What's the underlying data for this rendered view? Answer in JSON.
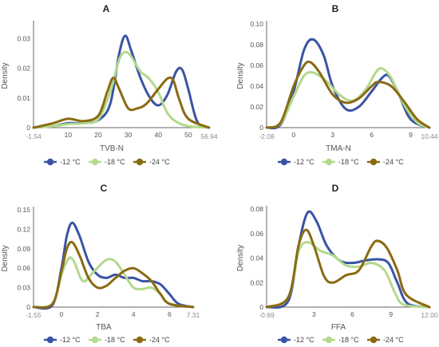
{
  "colors": {
    "minus12": "#3a53a4",
    "minus18": "#b3d98c",
    "minus24": "#8a6a12"
  },
  "chart_data": [
    {
      "type": "line",
      "panel": "A",
      "xlabel": "TVB-N",
      "ylabel": "Density",
      "xlim": [
        -1.54,
        56.94
      ],
      "xlim_labels": [
        "-1.54",
        "56.94"
      ],
      "ylim": [
        0,
        0.035
      ],
      "xticks": [
        10,
        20,
        30,
        40,
        50
      ],
      "xtick_labels": [
        "10",
        "20",
        "30",
        "40",
        "50"
      ],
      "yticks": [
        0,
        0.005,
        0.01,
        0.015,
        0.02,
        0.025,
        0.03
      ],
      "ytick_labels": [
        "0",
        "",
        "0.01",
        "",
        "0.02",
        "",
        "0.03"
      ],
      "series": [
        {
          "name": "-12 °C",
          "x": [
            -1.54,
            5,
            10,
            15,
            20,
            24,
            27,
            29,
            31,
            34,
            37,
            40,
            43,
            46,
            48,
            50,
            53,
            56.94
          ],
          "y": [
            0,
            0.0005,
            0.0015,
            0.0015,
            0.0025,
            0.008,
            0.025,
            0.031,
            0.026,
            0.017,
            0.0105,
            0.0075,
            0.011,
            0.019,
            0.0195,
            0.013,
            0.002,
            0
          ]
        },
        {
          "name": "-18 °C",
          "x": [
            -1.54,
            5,
            10,
            15,
            20,
            24,
            27,
            29,
            31,
            34,
            37,
            40,
            43,
            46,
            50,
            56.94
          ],
          "y": [
            0,
            0.0005,
            0.0012,
            0.0015,
            0.0028,
            0.012,
            0.023,
            0.0255,
            0.024,
            0.019,
            0.0165,
            0.012,
            0.005,
            0.002,
            0.0005,
            0
          ]
        },
        {
          "name": "-24 °C",
          "x": [
            -1.54,
            5,
            10,
            15,
            20,
            23,
            25,
            27,
            30,
            33,
            36,
            40,
            43,
            45,
            47,
            50,
            56.94
          ],
          "y": [
            0,
            0.0015,
            0.003,
            0.0022,
            0.004,
            0.012,
            0.0168,
            0.013,
            0.0065,
            0.0065,
            0.008,
            0.013,
            0.0165,
            0.016,
            0.0095,
            0.003,
            0
          ]
        }
      ]
    },
    {
      "type": "line",
      "panel": "B",
      "xlabel": "TMA-N",
      "ylabel": "Density",
      "xlim": [
        -2.08,
        10.44
      ],
      "xlim_labels": [
        "-2.08",
        "10.44"
      ],
      "ylim": [
        0,
        0.1
      ],
      "xticks": [
        0,
        3,
        6,
        9
      ],
      "xtick_labels": [
        "0",
        "3",
        "6",
        "9"
      ],
      "yticks": [
        0,
        0.02,
        0.04,
        0.06,
        0.08,
        0.1
      ],
      "ytick_labels": [
        "0",
        "0.02",
        "0.04",
        "0.06",
        "0.08",
        "0.10"
      ],
      "series": [
        {
          "name": "-12 °C",
          "x": [
            -2.08,
            -1,
            0,
            0.8,
            1.5,
            2.3,
            3,
            4,
            5,
            6,
            6.8,
            7.3,
            8,
            9,
            10.44
          ],
          "y": [
            0,
            0.003,
            0.035,
            0.075,
            0.085,
            0.07,
            0.04,
            0.018,
            0.02,
            0.035,
            0.048,
            0.05,
            0.035,
            0.008,
            0
          ]
        },
        {
          "name": "-18 °C",
          "x": [
            -2.08,
            -1,
            0,
            0.8,
            1.5,
            2.5,
            3.5,
            4.5,
            5.5,
            6.3,
            6.8,
            7.5,
            8.5,
            9.5,
            10.44
          ],
          "y": [
            0,
            0.004,
            0.03,
            0.05,
            0.053,
            0.045,
            0.032,
            0.026,
            0.036,
            0.053,
            0.057,
            0.048,
            0.022,
            0.005,
            0
          ]
        },
        {
          "name": "-24 °C",
          "x": [
            -2.08,
            -1,
            0,
            0.8,
            1.3,
            2,
            3,
            4,
            5,
            6,
            6.5,
            7.5,
            8.5,
            9.5,
            10.44
          ],
          "y": [
            0,
            0.005,
            0.04,
            0.06,
            0.063,
            0.053,
            0.032,
            0.024,
            0.028,
            0.04,
            0.044,
            0.04,
            0.025,
            0.008,
            0
          ]
        }
      ]
    },
    {
      "type": "line",
      "panel": "C",
      "xlabel": "TBA",
      "ylabel": "Density",
      "xlim": [
        -1.55,
        7.31
      ],
      "xlim_labels": [
        "-1.55",
        "7.31"
      ],
      "ylim": [
        0,
        0.15
      ],
      "xticks": [
        0,
        2,
        4,
        6
      ],
      "xtick_labels": [
        "0",
        "2",
        "4",
        "6"
      ],
      "yticks": [
        0,
        0.03,
        0.06,
        0.09,
        0.12,
        0.15
      ],
      "ytick_labels": [
        "0",
        "0.03",
        "0.06",
        "0.09",
        "0.12",
        "0.15"
      ],
      "series": [
        {
          "name": "-12 °C",
          "x": [
            -1.55,
            -0.5,
            0,
            0.3,
            0.6,
            1,
            1.5,
            2,
            2.5,
            3,
            3.5,
            4,
            4.5,
            5,
            5.5,
            6,
            6.5,
            7.31
          ],
          "y": [
            0,
            0.003,
            0.06,
            0.11,
            0.13,
            0.11,
            0.07,
            0.05,
            0.045,
            0.05,
            0.045,
            0.045,
            0.04,
            0.04,
            0.035,
            0.02,
            0.005,
            0
          ]
        },
        {
          "name": "-18 °C",
          "x": [
            -1.55,
            -0.5,
            0,
            0.4,
            0.7,
            1.2,
            1.8,
            2.5,
            3,
            3.5,
            4,
            4.5,
            5,
            5.5,
            6,
            7.31
          ],
          "y": [
            0,
            0.005,
            0.05,
            0.075,
            0.07,
            0.04,
            0.055,
            0.073,
            0.07,
            0.05,
            0.03,
            0.028,
            0.03,
            0.02,
            0.005,
            0
          ]
        },
        {
          "name": "-24 °C",
          "x": [
            -1.55,
            -0.5,
            0,
            0.3,
            0.6,
            1,
            1.5,
            2,
            2.5,
            3,
            3.5,
            4,
            4.5,
            5,
            5.5,
            6,
            7.31
          ],
          "y": [
            0,
            0.005,
            0.055,
            0.09,
            0.1,
            0.08,
            0.045,
            0.03,
            0.033,
            0.045,
            0.056,
            0.06,
            0.052,
            0.04,
            0.02,
            0.005,
            0
          ]
        }
      ]
    },
    {
      "type": "line",
      "panel": "D",
      "xlabel": "FFA",
      "ylabel": "Density",
      "xlim": [
        -0.69,
        12.0
      ],
      "xlim_labels": [
        "-0.69",
        "12.00"
      ],
      "ylim": [
        0,
        0.08
      ],
      "xticks": [
        3,
        6,
        9
      ],
      "xtick_labels": [
        "3",
        "6",
        "9"
      ],
      "yticks": [
        0,
        0.02,
        0.04,
        0.06,
        0.08
      ],
      "ytick_labels": [
        "0",
        "0.02",
        "0.04",
        "0.06",
        "0.08"
      ],
      "series": [
        {
          "name": "-12 °C",
          "x": [
            -0.69,
            1,
            1.8,
            2.5,
            3.2,
            4,
            5,
            6,
            7,
            8,
            8.8,
            9.5,
            10.3,
            12.0
          ],
          "y": [
            0,
            0.005,
            0.05,
            0.077,
            0.07,
            0.05,
            0.038,
            0.036,
            0.038,
            0.039,
            0.036,
            0.02,
            0.003,
            0
          ]
        },
        {
          "name": "-18 °C",
          "x": [
            -0.69,
            1,
            1.8,
            2.5,
            3.5,
            4.5,
            5.5,
            6.5,
            7.5,
            8.5,
            9.3,
            10,
            12.0
          ],
          "y": [
            0,
            0.008,
            0.045,
            0.053,
            0.046,
            0.042,
            0.034,
            0.033,
            0.036,
            0.03,
            0.012,
            0.002,
            0
          ]
        },
        {
          "name": "-24 °C",
          "x": [
            -0.69,
            1,
            1.8,
            2.4,
            3,
            3.8,
            4.5,
            5.5,
            6.5,
            7.5,
            8,
            8.7,
            9.5,
            10.2,
            12.0
          ],
          "y": [
            0,
            0.008,
            0.05,
            0.063,
            0.05,
            0.025,
            0.02,
            0.026,
            0.03,
            0.05,
            0.054,
            0.048,
            0.03,
            0.01,
            0
          ]
        }
      ]
    }
  ]
}
